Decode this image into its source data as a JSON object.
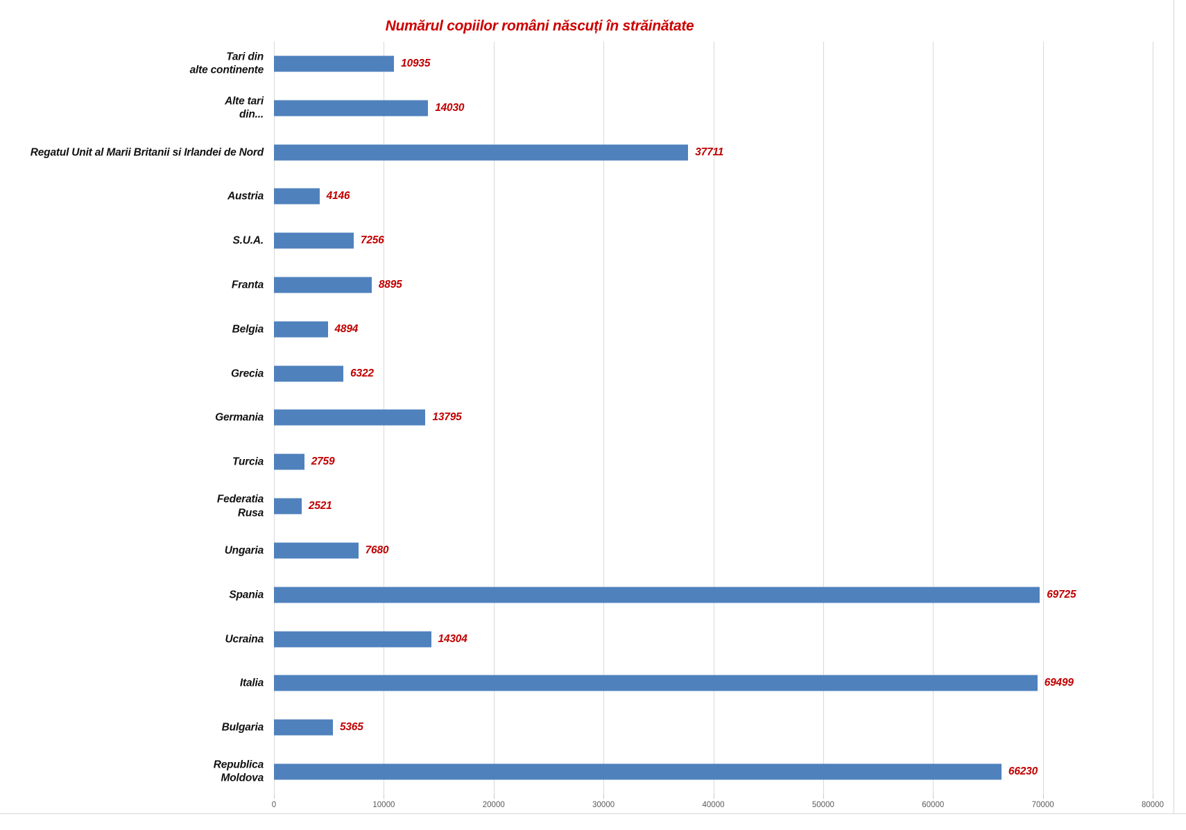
{
  "chart_data": {
    "type": "bar",
    "orientation": "horizontal",
    "title": "Numărul copiilor români născuți în străinătate",
    "categories": [
      "Tari din\nalte continente",
      "Alte tari\ndin...",
      "Regatul Unit al Marii Britanii si Irlandei de Nord",
      "Austria",
      "S.U.A.",
      "Franta",
      "Belgia",
      "Grecia",
      "Germania",
      "Turcia",
      "Federatia\nRusa",
      "Ungaria",
      "Spania",
      "Ucraina",
      "Italia",
      "Bulgaria",
      "Republica\nMoldova"
    ],
    "values": [
      10935,
      14030,
      37711,
      4146,
      7256,
      8895,
      4894,
      6322,
      13795,
      2759,
      2521,
      7680,
      69725,
      14304,
      69499,
      5365,
      66230
    ],
    "x_ticks": [
      0,
      10000,
      20000,
      30000,
      40000,
      50000,
      60000,
      70000,
      80000
    ],
    "x_tick_labels": [
      "0",
      "10000",
      "20000",
      "30000",
      "40000",
      "50000",
      "60000",
      "70000",
      "80000"
    ],
    "xlim": [
      0,
      80000
    ],
    "xlabel": "",
    "ylabel": "",
    "grid": "vertical-light-gray",
    "legend": "none",
    "colors": {
      "bar": "#4f81bd",
      "title": "#cc0000",
      "value_labels": "#c00000",
      "category_labels": "#111111",
      "axis_labels": "#595959",
      "gridlines": "#d9d9d9",
      "background": "#ffffff"
    }
  }
}
